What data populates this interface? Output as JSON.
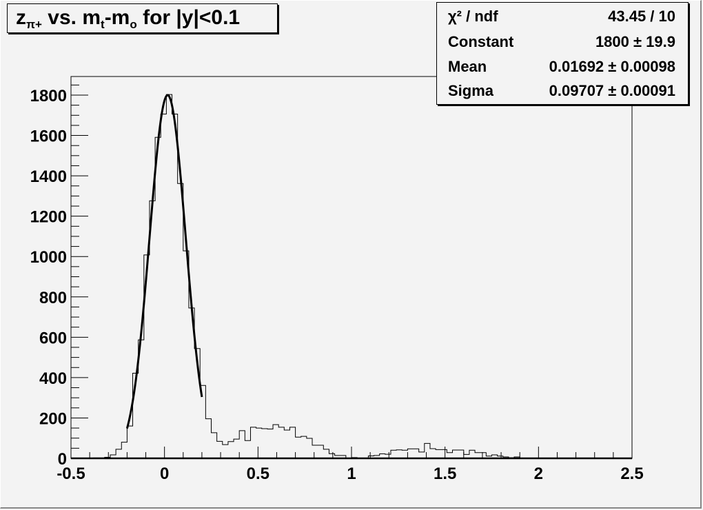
{
  "chart_data": {
    "type": "histogram",
    "title": {
      "main": "z",
      "sub": "π+",
      "rest1": " vs. m",
      "sub2": "t",
      "rest2": "-m",
      "sub3": "o",
      "rest3": " for |y|<0.1"
    },
    "xlim": [
      -0.5,
      2.5
    ],
    "ylim": [
      0,
      1900
    ],
    "bin_width": 0.03,
    "x_ticks": [
      "-0.5",
      "0",
      "0.5",
      "1",
      "1.5",
      "2",
      "2.5"
    ],
    "y_ticks": [
      "0",
      "200",
      "400",
      "600",
      "800",
      "1000",
      "1200",
      "1400",
      "1600",
      "1800"
    ],
    "values": [
      0,
      0,
      0,
      0,
      2,
      2,
      5,
      17,
      45,
      80,
      160,
      422,
      587,
      1008,
      1276,
      1591,
      1706,
      1803,
      1706,
      1362,
      1028,
      745,
      544,
      361,
      196,
      127,
      84,
      68,
      83,
      95,
      137,
      88,
      154,
      150,
      147,
      145,
      167,
      154,
      140,
      154,
      105,
      109,
      99,
      65,
      65,
      45,
      23,
      14,
      14,
      0,
      4,
      0,
      0,
      12,
      14,
      22,
      20,
      40,
      42,
      40,
      47,
      47,
      31,
      74,
      48,
      43,
      43,
      28,
      41,
      41,
      19,
      40,
      28,
      28,
      11,
      17,
      11,
      7,
      3,
      7,
      0,
      0,
      0,
      0,
      0,
      0,
      0,
      0,
      0,
      0,
      0,
      0,
      0,
      0,
      0,
      0,
      0,
      0,
      0,
      0
    ],
    "fit": {
      "function": "gaus",
      "constant": 1800,
      "mean": 0.01692,
      "sigma": 0.09707,
      "range": [
        -0.2,
        0.2
      ]
    },
    "grid": false
  },
  "stats": {
    "rows": [
      {
        "label": "χ² / ndf",
        "value": "43.45 / 10"
      },
      {
        "label": "Constant",
        "value": "1800 ± 19.9"
      },
      {
        "label": "Mean",
        "value": "0.01692 ± 0.00098"
      },
      {
        "label": "Sigma",
        "value": "0.09707 ± 0.00091"
      }
    ]
  }
}
